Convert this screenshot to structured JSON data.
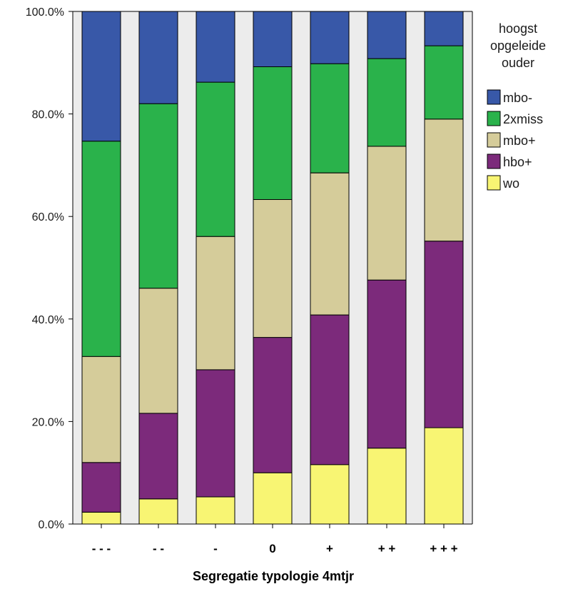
{
  "chart_data": {
    "type": "bar",
    "stacked": true,
    "percent": true,
    "categories": [
      "- - -",
      "- -",
      "-",
      "0",
      "+",
      "+ +",
      "+ + +"
    ],
    "series": [
      {
        "name": "wo",
        "color": "#f8f573",
        "values": [
          2.3,
          4.9,
          5.3,
          10.0,
          11.6,
          14.8,
          18.8
        ]
      },
      {
        "name": "hbo+",
        "color": "#7c2a7b",
        "values": [
          9.7,
          16.7,
          24.8,
          26.4,
          29.2,
          32.8,
          36.4
        ]
      },
      {
        "name": "mbo+",
        "color": "#d5cc9a",
        "values": [
          20.7,
          24.4,
          26.0,
          26.9,
          27.7,
          26.1,
          23.8
        ]
      },
      {
        "name": "2xmiss",
        "color": "#2ab24b",
        "values": [
          42.0,
          36.0,
          30.1,
          25.9,
          21.3,
          17.1,
          14.3
        ]
      },
      {
        "name": "mbo-",
        "color": "#3858a8",
        "values": [
          25.3,
          18.0,
          13.8,
          10.8,
          10.2,
          9.2,
          6.7
        ]
      }
    ],
    "ylim": [
      0,
      100
    ],
    "yticks": [
      "0.0%",
      "20.0%",
      "40.0%",
      "60.0%",
      "80.0%",
      "100.0%"
    ],
    "xlabel": "Segregatie typologie 4mtjr",
    "ylabel": "",
    "legend_title": [
      "hoogst",
      "opgeleide",
      "ouder"
    ],
    "legend_order": [
      "mbo-",
      "2xmiss",
      "mbo+",
      "hbo+",
      "wo"
    ],
    "legend_position": "right",
    "plot_background": "#ececec",
    "grid": false
  }
}
